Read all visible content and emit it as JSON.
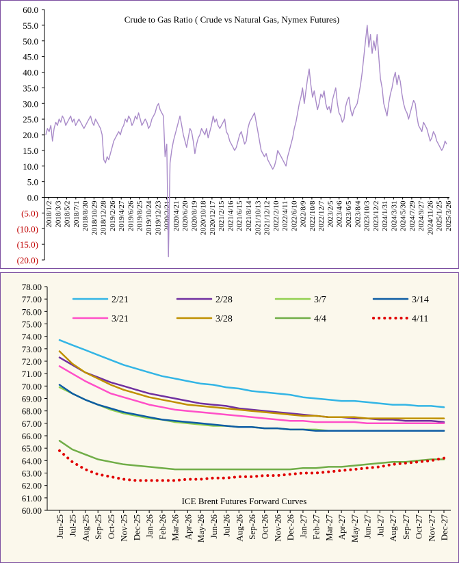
{
  "chart_data": [
    {
      "type": "line",
      "title": "Crude to Gas Ratio ( Crude vs Natural Gas, Nymex Futures)",
      "ylim": [
        -20,
        60
      ],
      "y_ticks": [
        "60.0",
        "55.0",
        "50.0",
        "45.0",
        "40.0",
        "35.0",
        "30.0",
        "25.0",
        "20.0",
        "15.0",
        "10.0",
        "5.0",
        "0.0",
        "(5.0)",
        "(10.0)",
        "(15.0)",
        "(20.0)"
      ],
      "x_tick_labels": [
        "2018/1/2",
        "2018/3/3",
        "2018/5/2",
        "2018/7/1",
        "2018/8/30",
        "2018/10/29",
        "2018/12/28",
        "2019/2/26",
        "2019/4/27",
        "2019/6/26",
        "2019/8/25",
        "2019/10/24",
        "2019/12/23",
        "2020/2/21",
        "2020/4/21",
        "2020/6/20",
        "2020/8/19",
        "2020/10/18",
        "2020/12/17",
        "2021/2/15",
        "2021/4/16",
        "2021/6/15",
        "2021/8/14",
        "2021/10/13",
        "2021/12/12",
        "2022/2/10",
        "2022/4/11",
        "2022/6/10",
        "2022/8/9",
        "2022/10/8",
        "2022/12/7",
        "2023/2/5",
        "2023/4/6",
        "2023/6/5",
        "2023/8/4",
        "2023/10/3",
        "2023/12/2",
        "2024/1/31",
        "2024/3/31",
        "2024/5/30",
        "2024/7/29",
        "2024/9/27",
        "2024/11/26",
        "2025/1/25",
        "2025/3/26"
      ],
      "grid": false,
      "color": "#a98bc9",
      "series": [
        {
          "values": [
            20,
            22,
            21,
            23,
            18,
            22,
            24,
            23,
            25,
            24,
            26,
            25,
            23,
            24,
            25,
            26,
            24,
            25,
            23,
            24,
            25,
            24,
            23,
            22,
            23,
            24,
            25,
            26,
            24,
            23,
            25,
            24,
            23,
            22,
            20,
            12,
            11,
            13,
            12,
            14,
            16,
            18,
            19,
            20,
            21,
            20,
            22,
            23,
            25,
            24,
            26,
            25,
            23,
            24,
            26,
            25,
            27,
            25,
            23,
            24,
            25,
            24,
            22,
            23,
            25,
            26,
            27,
            29,
            30,
            28,
            27,
            26,
            13,
            17,
            -19,
            11,
            15,
            18,
            20,
            22,
            24,
            26,
            23,
            20,
            18,
            16,
            19,
            22,
            21,
            18,
            14,
            17,
            19,
            20,
            22,
            21,
            20,
            22,
            19,
            21,
            23,
            26,
            24,
            25,
            23,
            22,
            23,
            24,
            25,
            21,
            20,
            18,
            17,
            16,
            15,
            16,
            18,
            20,
            21,
            19,
            17,
            18,
            22,
            24,
            25,
            26,
            27,
            24,
            21,
            18,
            15,
            14,
            13,
            14,
            12,
            11,
            10,
            9,
            10,
            12,
            15,
            14,
            13,
            12,
            11,
            10,
            13,
            15,
            17,
            19,
            22,
            24,
            27,
            30,
            32,
            35,
            30,
            34,
            38,
            41,
            36,
            32,
            34,
            31,
            28,
            30,
            33,
            32,
            34,
            30,
            28,
            29,
            27,
            31,
            33,
            35,
            30,
            27,
            26,
            24,
            25,
            29,
            31,
            32,
            28,
            26,
            28,
            29,
            30,
            33,
            36,
            40,
            45,
            50,
            55,
            48,
            52,
            46,
            50,
            47,
            52,
            45,
            38,
            35,
            30,
            28,
            26,
            30,
            33,
            35,
            38,
            40,
            36,
            39,
            37,
            33,
            30,
            28,
            27,
            25,
            27,
            29,
            31,
            30,
            26,
            23,
            22,
            21,
            24,
            23,
            22,
            20,
            18,
            19,
            21,
            20,
            18,
            17,
            16,
            15,
            16,
            18,
            17
          ]
        }
      ]
    },
    {
      "type": "line",
      "title": "ICE Brent Futures Forward Curves",
      "ylim": [
        60,
        78
      ],
      "y_ticks": [
        "78.00",
        "77.00",
        "76.00",
        "75.00",
        "74.00",
        "73.00",
        "72.00",
        "71.00",
        "70.00",
        "69.00",
        "68.00",
        "67.00",
        "66.00",
        "65.00",
        "64.00",
        "63.00",
        "62.00",
        "61.00",
        "60.00"
      ],
      "categories": [
        "Jun-25",
        "Jul-25",
        "Aug-25",
        "Sep-25",
        "Oct-25",
        "Nov-25",
        "Dec-25",
        "Jan-26",
        "Feb-26",
        "Mar-26",
        "Apr-26",
        "May-26",
        "Jun-26",
        "Jul-26",
        "Aug-26",
        "Sep-26",
        "Oct-26",
        "Nov-26",
        "Dec-26",
        "Jan-27",
        "Feb-27",
        "Mar-27",
        "Apr-27",
        "May-27",
        "Jun-27",
        "Jul-27",
        "Aug-27",
        "Sep-27",
        "Oct-27",
        "Nov-27",
        "Dec-27"
      ],
      "legend_position": "top",
      "series": [
        {
          "name": "2/21",
          "color": "#33b5e5",
          "dotted": false,
          "values": [
            73.7,
            73.3,
            72.9,
            72.5,
            72.1,
            71.7,
            71.4,
            71.1,
            70.8,
            70.6,
            70.4,
            70.2,
            70.1,
            69.9,
            69.8,
            69.6,
            69.5,
            69.4,
            69.3,
            69.1,
            69.0,
            68.9,
            68.8,
            68.8,
            68.7,
            68.6,
            68.5,
            68.5,
            68.4,
            68.4,
            68.3
          ]
        },
        {
          "name": "2/28",
          "color": "#7030a0",
          "dotted": false,
          "values": [
            72.3,
            71.7,
            71.1,
            70.7,
            70.3,
            70.0,
            69.7,
            69.4,
            69.2,
            69.0,
            68.8,
            68.6,
            68.5,
            68.4,
            68.2,
            68.1,
            68.0,
            67.9,
            67.8,
            67.7,
            67.6,
            67.5,
            67.5,
            67.4,
            67.4,
            67.3,
            67.3,
            67.2,
            67.2,
            67.2,
            67.1
          ]
        },
        {
          "name": "3/7",
          "color": "#92d050",
          "dotted": false,
          "values": [
            69.9,
            69.4,
            68.9,
            68.5,
            68.1,
            67.8,
            67.6,
            67.4,
            67.3,
            67.1,
            67.0,
            66.9,
            66.8,
            66.8,
            66.7,
            66.7,
            66.6,
            66.6,
            66.5,
            66.5,
            66.5,
            66.4,
            66.4,
            66.4,
            66.4,
            66.4,
            66.4,
            66.4,
            66.4,
            66.4,
            66.4
          ]
        },
        {
          "name": "3/14",
          "color": "#0d5ca3",
          "dotted": false,
          "values": [
            70.1,
            69.4,
            68.9,
            68.5,
            68.2,
            67.9,
            67.7,
            67.5,
            67.3,
            67.2,
            67.1,
            67.0,
            66.9,
            66.8,
            66.7,
            66.7,
            66.6,
            66.6,
            66.5,
            66.5,
            66.4,
            66.4,
            66.4,
            66.4,
            66.4,
            66.4,
            66.4,
            66.4,
            66.4,
            66.4,
            66.4
          ]
        },
        {
          "name": "3/21",
          "color": "#ff4fc8",
          "dotted": false,
          "values": [
            71.6,
            71.0,
            70.4,
            69.9,
            69.4,
            69.1,
            68.8,
            68.5,
            68.3,
            68.1,
            68.0,
            67.9,
            67.8,
            67.7,
            67.6,
            67.5,
            67.4,
            67.3,
            67.2,
            67.2,
            67.1,
            67.1,
            67.1,
            67.1,
            67.0,
            67.0,
            67.0,
            67.0,
            67.0,
            67.0,
            67.0
          ]
        },
        {
          "name": "3/28",
          "color": "#bf9000",
          "dotted": false,
          "values": [
            72.8,
            71.8,
            71.1,
            70.6,
            70.1,
            69.7,
            69.4,
            69.1,
            68.9,
            68.7,
            68.5,
            68.4,
            68.3,
            68.2,
            68.1,
            68.0,
            67.9,
            67.8,
            67.7,
            67.6,
            67.6,
            67.5,
            67.5,
            67.5,
            67.4,
            67.4,
            67.4,
            67.4,
            67.4,
            67.4,
            67.4
          ]
        },
        {
          "name": "4/4",
          "color": "#70ad47",
          "dotted": false,
          "values": [
            65.6,
            64.9,
            64.5,
            64.1,
            63.9,
            63.7,
            63.6,
            63.5,
            63.4,
            63.3,
            63.3,
            63.3,
            63.3,
            63.3,
            63.3,
            63.3,
            63.3,
            63.3,
            63.3,
            63.4,
            63.4,
            63.5,
            63.5,
            63.6,
            63.7,
            63.8,
            63.9,
            63.9,
            64.0,
            64.1,
            64.1
          ]
        },
        {
          "name": "4/11",
          "color": "#e00000",
          "dotted": true,
          "values": [
            64.8,
            63.9,
            63.3,
            62.9,
            62.7,
            62.5,
            62.4,
            62.4,
            62.4,
            62.4,
            62.5,
            62.5,
            62.6,
            62.6,
            62.7,
            62.7,
            62.8,
            62.8,
            62.9,
            63.0,
            63.0,
            63.1,
            63.2,
            63.3,
            63.4,
            63.5,
            63.7,
            63.8,
            63.9,
            64.0,
            64.2
          ]
        }
      ]
    }
  ]
}
